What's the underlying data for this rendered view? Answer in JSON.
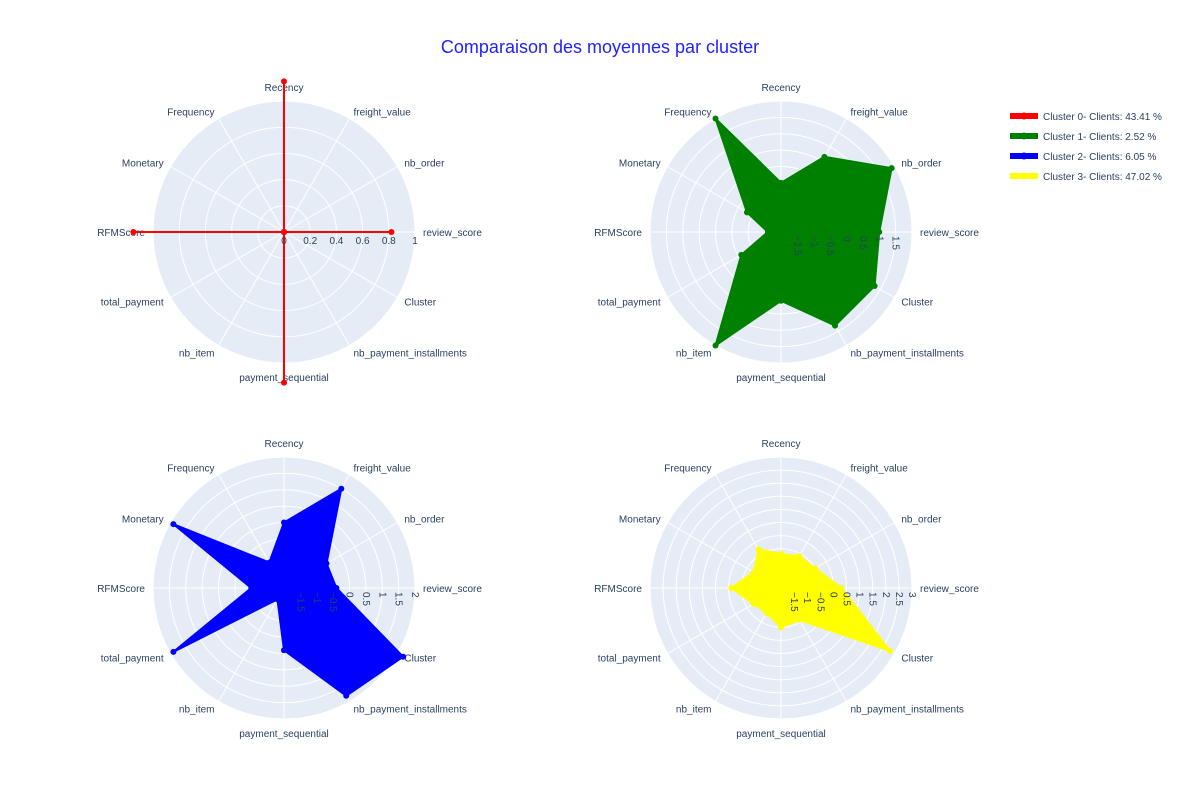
{
  "chart_data": {
    "type": "radar",
    "title": "Comparaison des moyennes par cluster",
    "categories": [
      "review_score",
      "nb_order",
      "freight_value",
      "Recency",
      "Frequency",
      "Monetary",
      "RFMScore",
      "total_payment",
      "nb_item",
      "payment_sequential",
      "nb_payment_installments",
      "Cluster"
    ],
    "legend_placement": "top-right",
    "grid": true,
    "series": [
      {
        "name": "Cluster 0- Clients: 43.41 %",
        "color": "#ff0000",
        "range": [
          0,
          1
        ],
        "ticks": [
          "0",
          "0.2",
          "0.4",
          "0.6",
          "0.8",
          "1"
        ],
        "values": [
          0.82,
          0,
          0,
          1.15,
          0,
          0,
          1.15,
          0,
          0,
          1.15,
          0,
          0
        ]
      },
      {
        "name": "Cluster 1- Clients: 2.52 %",
        "color": "#008000",
        "range": [
          -2,
          2
        ],
        "ticks": [
          "-1.5",
          "-1",
          "-0.5",
          "0",
          "0.5",
          "1",
          "1.5"
        ],
        "values": [
          1.0,
          1.9,
          0.65,
          -0.5,
          2.0,
          -0.8,
          -1.6,
          -0.6,
          2.0,
          0.1,
          1.3,
          1.3
        ]
      },
      {
        "name": "Cluster 2- Clients: 6.05 %",
        "color": "#0000ff",
        "range": [
          -2,
          2
        ],
        "ticks": [
          "-1.5",
          "-1",
          "-0.5",
          "0",
          "0.5",
          "1",
          "1.5",
          "2"
        ],
        "values": [
          -0.4,
          -0.5,
          1.5,
          0.0,
          -1.1,
          1.9,
          -1.0,
          1.9,
          -1.6,
          -0.1,
          1.8,
          2.2
        ]
      },
      {
        "name": "Cluster 3- Clients: 47.02 %",
        "color": "#ffff00",
        "range": [
          -2,
          3
        ],
        "ticks": [
          "-1.5",
          "-1",
          "-0.5",
          "0",
          "0.5",
          "1",
          "1.5",
          "2",
          "2.5",
          "3"
        ],
        "values": [
          0.3,
          -0.5,
          -0.6,
          -0.7,
          -0.3,
          -0.8,
          -0.1,
          -0.8,
          -0.9,
          -0.5,
          -0.6,
          2.8
        ]
      }
    ]
  }
}
